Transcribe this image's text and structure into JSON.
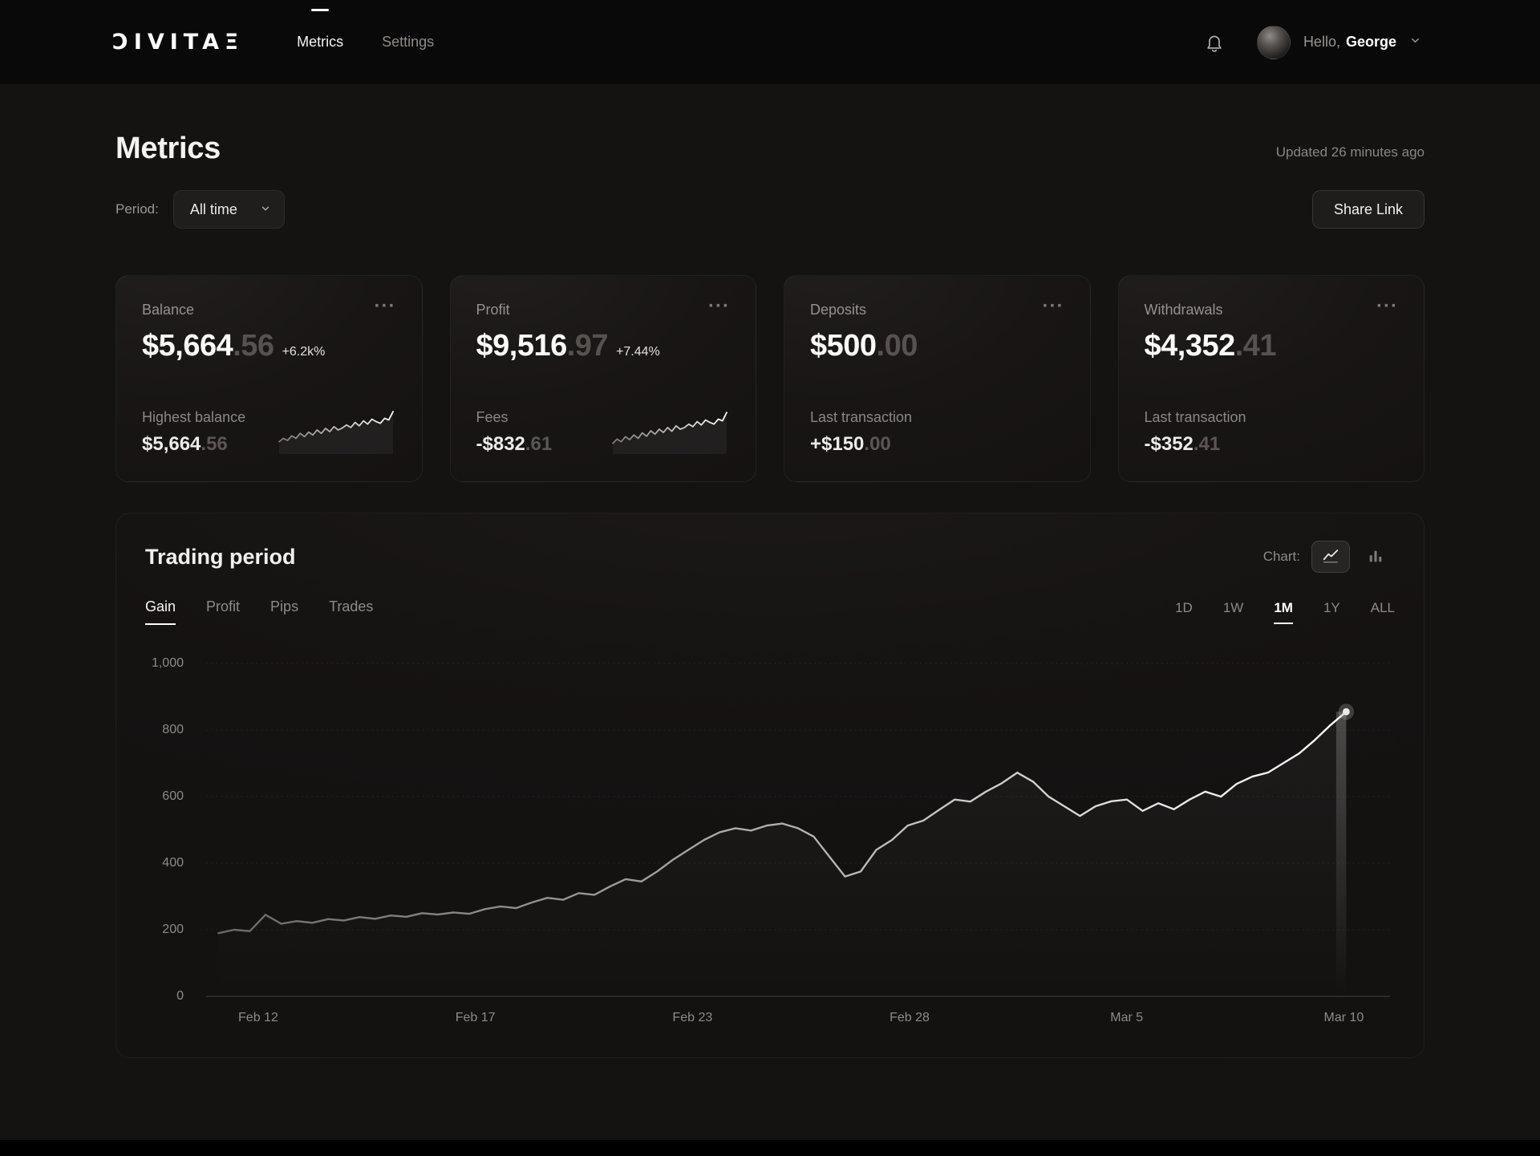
{
  "navbar": {
    "logo": "ƆIVITAΞ",
    "items": [
      {
        "label": "Metrics",
        "active": true
      },
      {
        "label": "Settings",
        "active": false
      }
    ],
    "greeting_prefix": "Hello,",
    "user_name": "George"
  },
  "header": {
    "title": "Metrics",
    "updated": "Updated 26 minutes ago",
    "period_label": "Period:",
    "period_value": "All time",
    "share_button": "Share Link"
  },
  "icons": {
    "card_menu": "···"
  },
  "colors": {
    "background": "#151212",
    "navbar": "#0a0909",
    "card_border": "rgba(255,255,255,0.055)",
    "text_primary": "#fbfaf9",
    "text_muted": "#8d8a88",
    "text_dimmed_decimal": "#575250",
    "chart_line_start": "#6b6866",
    "chart_line_end": "#ffffff"
  },
  "cards": [
    {
      "title": "Balance",
      "value_main": "$5,664",
      "value_decimal": ".56",
      "badge": "+6.2k%",
      "sub_label": "Highest balance",
      "sub_main": "$5,664",
      "sub_decimal": ".56",
      "sparkline": [
        22,
        30,
        25,
        36,
        30,
        42,
        34,
        45,
        38,
        50,
        42,
        54,
        46,
        58,
        50,
        55,
        62,
        56,
        68,
        60,
        72,
        64,
        76,
        70,
        66,
        78,
        74,
        94
      ]
    },
    {
      "title": "Profit",
      "value_main": "$9,516",
      "value_decimal": ".97",
      "badge": "+7.44%",
      "sub_label": "Fees",
      "sub_main": "-$832",
      "sub_decimal": ".61",
      "sparkline": [
        18,
        28,
        22,
        34,
        27,
        38,
        30,
        43,
        35,
        48,
        40,
        52,
        44,
        56,
        47,
        60,
        52,
        56,
        64,
        58,
        70,
        62,
        74,
        68,
        64,
        76,
        72,
        92
      ]
    },
    {
      "title": "Deposits",
      "value_main": "$500",
      "value_decimal": ".00",
      "badge": "",
      "sub_label": "Last transaction",
      "sub_main": "+$150",
      "sub_decimal": ".00"
    },
    {
      "title": "Withdrawals",
      "value_main": "$4,352",
      "value_decimal": ".41",
      "badge": "",
      "sub_label": "Last transaction",
      "sub_main": "-$352",
      "sub_decimal": ".41"
    }
  ],
  "trading": {
    "title": "Trading period",
    "chart_label": "Chart:",
    "tabs": [
      {
        "label": "Gain",
        "active": true
      },
      {
        "label": "Profit",
        "active": false
      },
      {
        "label": "Pips",
        "active": false
      },
      {
        "label": "Trades",
        "active": false
      }
    ],
    "ranges": [
      {
        "label": "1D",
        "active": false
      },
      {
        "label": "1W",
        "active": false
      },
      {
        "label": "1M",
        "active": true
      },
      {
        "label": "1Y",
        "active": false
      },
      {
        "label": "ALL",
        "active": false
      }
    ]
  },
  "chart_data": {
    "type": "line",
    "title": "Trading period",
    "selected_metric": "Gain",
    "selected_range": "1M",
    "x_tick_labels": [
      "Feb 12",
      "Feb 17",
      "Feb 23",
      "Feb 28",
      "Mar 5",
      "Mar 10"
    ],
    "y_ticks": [
      0,
      200,
      400,
      600,
      800,
      1000
    ],
    "y_tick_labels": [
      "0",
      "200",
      "400",
      "600",
      "800",
      "1,000"
    ],
    "ylim": [
      0,
      1000
    ],
    "grid": true,
    "legend": false,
    "series": [
      {
        "name": "Gain",
        "values": [
          190,
          200,
          196,
          245,
          218,
          226,
          221,
          232,
          228,
          238,
          233,
          243,
          239,
          250,
          246,
          252,
          248,
          262,
          270,
          265,
          282,
          296,
          290,
          310,
          305,
          330,
          352,
          345,
          375,
          410,
          440,
          470,
          493,
          505,
          498,
          513,
          519,
          505,
          480,
          420,
          360,
          375,
          440,
          470,
          513,
          528,
          560,
          591,
          585,
          615,
          640,
          672,
          645,
          600,
          571,
          542,
          571,
          586,
          591,
          557,
          580,
          562,
          591,
          615,
          600,
          638,
          660,
          672,
          701,
          730,
          770,
          815,
          855
        ]
      }
    ],
    "last_value": 855
  }
}
